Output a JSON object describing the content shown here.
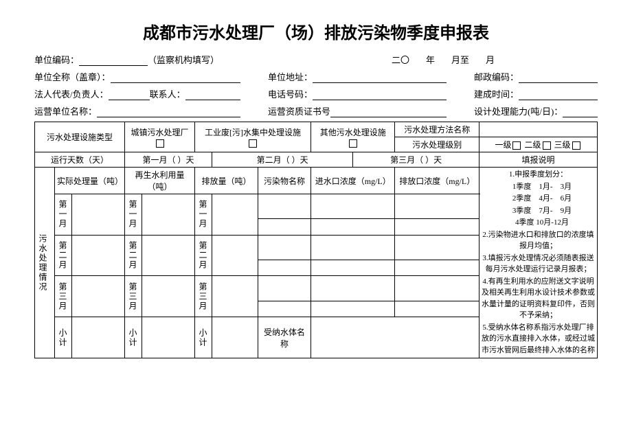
{
  "title": "成都市污水处理厂（场）排放污染物季度申报表",
  "header": {
    "r1": {
      "code_label": "单位编码：",
      "code_note": "（监察机构填写）",
      "date_prefix": "二〇",
      "year": "年",
      "month_from": "月至",
      "month_to": "月"
    },
    "r2": {
      "name_label": "单位全称（盖章）：",
      "addr_label": "单位地址：",
      "zip_label": "邮政编码："
    },
    "r3": {
      "legal_label": "法人代表/负责人：",
      "contact_label": "联系人：",
      "phone_label": "电话号码：",
      "built_label": "建成时间："
    },
    "r4": {
      "operator_label": "运营单位名称：",
      "cert_label": "运营资质证书号",
      "capacity_label": "设计处理能力(吨/日)："
    }
  },
  "t": {
    "facility_type": "污水处理设施类型",
    "urban": "城镇污水处理厂",
    "industrial": "工业废[污]水集中处理设施",
    "other_facility": "其他污水处理设施",
    "method_name": "污水处理方法名称",
    "level_label": "污水处理级别",
    "lvl1": "一级",
    "lvl2": "二级",
    "lvl3": "三级",
    "run_days": "运行天数（天）",
    "m1_days": "第一月（    ）天",
    "m2_days": "第二月（    ）天",
    "m3_days": "第三月（    ）天",
    "notes_title": "填报说明",
    "side": "污水处理情况",
    "actual": "实际处理量（吨）",
    "reuse": "再生水利用量（吨）",
    "discharge": "排放量（吨）",
    "pollutant": "污染物名称",
    "inlet": "进水口浓度（mg/L）",
    "outlet": "排放口浓度（mg/L）",
    "m1": "第一月",
    "m2": "第二月",
    "m3": "第三月",
    "sub": "小计",
    "recv_body": "受纳水体名称"
  },
  "notes": [
    "1.申报季度划分：",
    "　1季度　1月-　3月",
    "　2季度　4月-　6月",
    "　3季度　7月-　9月",
    "　4季度 10月-12月",
    "2.污染物进水口和排放口的浓度填报月均值；",
    "3.填报污水处理情况必须随表报送每月污水处理运行记录月报表；",
    "4.有再生利用水的应附送文字说明及相关再生利用水设计技术参数或水量计量的证明资料复印件，否则不予采纳；",
    "5.受纳水体名称系指污水处理厂排放的污水直接排入水体，或经过城市污水管网后最终排入水体的名称"
  ]
}
